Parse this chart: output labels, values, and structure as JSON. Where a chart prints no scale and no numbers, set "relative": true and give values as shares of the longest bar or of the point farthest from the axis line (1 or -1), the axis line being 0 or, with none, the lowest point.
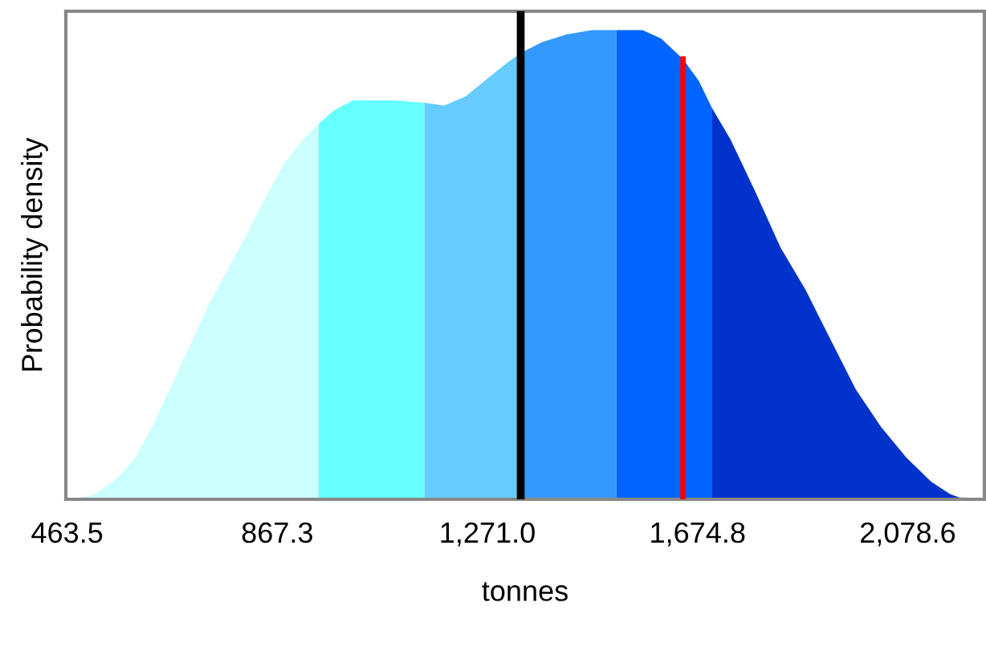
{
  "chart_data": {
    "type": "area",
    "relative": true,
    "xlabel": "tonnes",
    "ylabel": "Probability density",
    "xlim": [
      461,
      2226
    ],
    "xticks": [
      463.5,
      867.3,
      {
        "value": 1271.0,
        "label": "1,271.0"
      },
      {
        "value": 1674.8,
        "label": "1,674.8"
      },
      {
        "value": 2078.6,
        "label": "2,078.6"
      }
    ],
    "series": [
      {
        "color": "#ccffff",
        "x": [
          463.5,
          512,
          555,
          591,
          627,
          663,
          699,
          736,
          772,
          808,
          844,
          880,
          917,
          947
        ],
        "values": [
          0,
          0.008,
          0.04,
          0.083,
          0.155,
          0.24,
          0.326,
          0.416,
          0.49,
          0.563,
          0.642,
          0.714,
          0.767,
          0.8
        ]
      },
      {
        "color": "#66ffff",
        "x": [
          947,
          977,
          1013,
          1092,
          1150
        ],
        "values": [
          0.8,
          0.829,
          0.85,
          0.85,
          0.845
        ]
      },
      {
        "color": "#66ccff",
        "x": [
          1150,
          1188,
          1230,
          1266,
          1303,
          1335
        ],
        "values": [
          0.845,
          0.839,
          0.859,
          0.892,
          0.925,
          0.951
        ]
      },
      {
        "color": "#3399ff",
        "x": [
          1335,
          1376,
          1424,
          1472,
          1519
        ],
        "values": [
          0.951,
          0.974,
          0.991,
          1.0,
          1.0
        ]
      },
      {
        "color": "#0066ff",
        "x": [
          1519,
          1569,
          1605,
          1647,
          1677,
          1703
        ],
        "values": [
          1.0,
          1.0,
          0.982,
          0.938,
          0.892,
          0.833
        ]
      },
      {
        "color": "#0033cc",
        "x": [
          1703,
          1738,
          1786,
          1834,
          1883,
          1931,
          1979,
          2027,
          2076,
          2124,
          2160,
          2178,
          2221
        ],
        "values": [
          0.833,
          0.767,
          0.655,
          0.537,
          0.445,
          0.339,
          0.234,
          0.155,
          0.089,
          0.037,
          0.011,
          0.004,
          0.003
        ]
      },
      {
        "type": "line",
        "color": "#ff0000",
        "x": [
          1647,
          1647
        ],
        "values": [
          0,
          0.938
        ]
      }
    ],
    "ref_lines": [
      {
        "axis": "x",
        "value": 1335,
        "color": "#000000"
      }
    ],
    "grid": false,
    "legend": false
  }
}
